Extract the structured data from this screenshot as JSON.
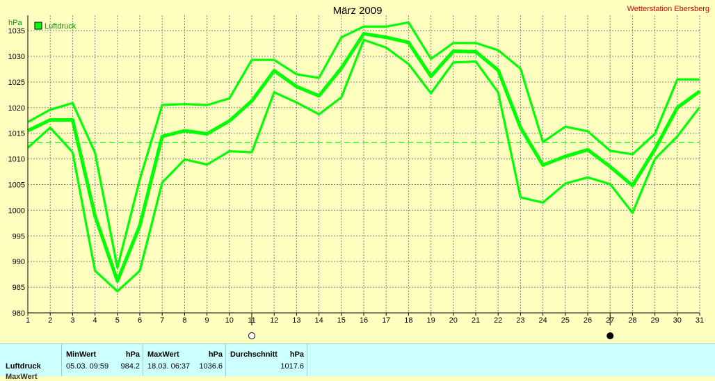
{
  "chart_data": {
    "type": "line",
    "title": "März 2009",
    "station": "Wetterstation Ebersberg",
    "ylabel": "hPa",
    "legend": {
      "label": "Luftdruck",
      "placement": "top-left"
    },
    "x": [
      1,
      2,
      3,
      4,
      5,
      6,
      7,
      8,
      9,
      10,
      11,
      12,
      13,
      14,
      15,
      16,
      17,
      18,
      19,
      20,
      21,
      22,
      23,
      24,
      25,
      26,
      27,
      28,
      29,
      30,
      31
    ],
    "ylim": [
      980,
      1038
    ],
    "yticks": [
      980,
      985,
      990,
      995,
      1000,
      1005,
      1010,
      1015,
      1020,
      1025,
      1030,
      1035
    ],
    "grid": true,
    "reference_line": 1013.25,
    "series": [
      {
        "role": "max",
        "values": [
          1017.2,
          1019.6,
          1020.9,
          1011.2,
          988.8,
          1006.0,
          1020.5,
          1020.7,
          1020.5,
          1021.8,
          1029.3,
          1029.3,
          1026.5,
          1025.8,
          1033.7,
          1035.8,
          1035.8,
          1036.6,
          1029.5,
          1032.6,
          1032.6,
          1031.2,
          1027.6,
          1013.3,
          1016.3,
          1015.4,
          1011.6,
          1010.9,
          1014.9,
          1025.5,
          1025.5
        ]
      },
      {
        "role": "avg",
        "values": [
          1015.5,
          1017.6,
          1017.6,
          998.9,
          986.2,
          997.0,
          1014.4,
          1015.5,
          1014.9,
          1017.4,
          1021.3,
          1027.2,
          1024.1,
          1022.3,
          1027.7,
          1034.4,
          1033.7,
          1032.7,
          1026.1,
          1031.0,
          1030.9,
          1027.3,
          1016.1,
          1008.8,
          1010.5,
          1011.8,
          1008.5,
          1004.8,
          1011.9,
          1020.0,
          1023.2
        ]
      },
      {
        "role": "min",
        "values": [
          1012.2,
          1016.1,
          1011.3,
          988.2,
          984.2,
          988.2,
          1005.4,
          1009.9,
          1008.9,
          1011.5,
          1011.3,
          1023.0,
          1021.0,
          1018.7,
          1022.0,
          1033.2,
          1031.7,
          1028.5,
          1022.8,
          1028.8,
          1029.0,
          1023.0,
          1002.5,
          1001.5,
          1005.2,
          1006.4,
          1005.1,
          999.5,
          1010.0,
          1014.4,
          1020.1
        ]
      }
    ],
    "markers": [
      {
        "day": 11,
        "symbol": "full-moon"
      },
      {
        "day": 27,
        "symbol": "new-moon"
      }
    ],
    "colors": {
      "line": "#00ff00",
      "background": "#ffffc0",
      "title": "#000000",
      "station": "#cc0000",
      "axis_label": "#009900",
      "grid": "#808080"
    }
  },
  "stats": {
    "row_label": "Luftdruck",
    "row_label_2": "MaxWert",
    "min": {
      "header": "MinWert",
      "unit": "hPa",
      "date": "05.03.  09:59",
      "value": "984.2"
    },
    "max": {
      "header": "MaxWert",
      "unit": "hPa",
      "date": "18.03.  06:37",
      "value": "1036.6"
    },
    "avg": {
      "header": "Durchschnitt",
      "unit": "hPa",
      "value": "1017.6"
    }
  }
}
